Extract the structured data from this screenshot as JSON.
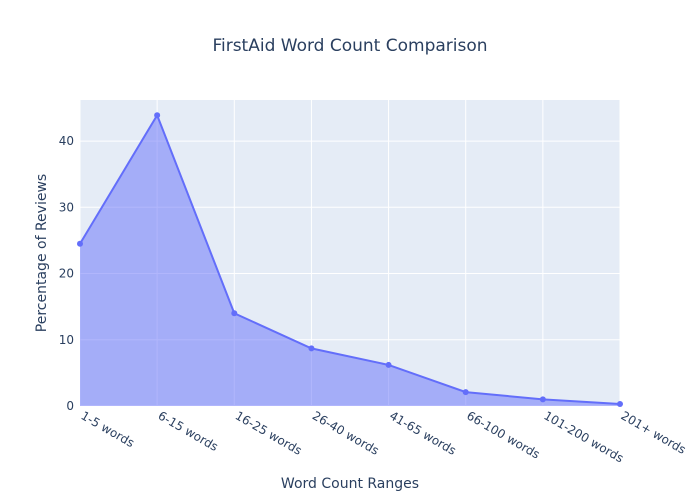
{
  "chart_data": {
    "type": "area",
    "title": "FirstAid Word Count Comparison",
    "xlabel": "Word Count Ranges",
    "ylabel": "Percentage of Reviews",
    "categories": [
      "1-5 words",
      "6-15 words",
      "16-25 words",
      "26-40 words",
      "41-65 words",
      "66-100 words",
      "101-200 words",
      "201+ words"
    ],
    "values": [
      24.5,
      43.9,
      14.0,
      8.7,
      6.2,
      2.1,
      1.0,
      0.3
    ],
    "ylim": [
      0,
      46.2
    ],
    "yticks": [
      0,
      10,
      20,
      30,
      40
    ],
    "grid": true,
    "colors": {
      "plot_bg": "#e5ecf6",
      "grid": "#ffffff",
      "line": "#636efa",
      "fill": "rgba(99,110,250,0.5)",
      "text": "#2a3f5f"
    }
  }
}
